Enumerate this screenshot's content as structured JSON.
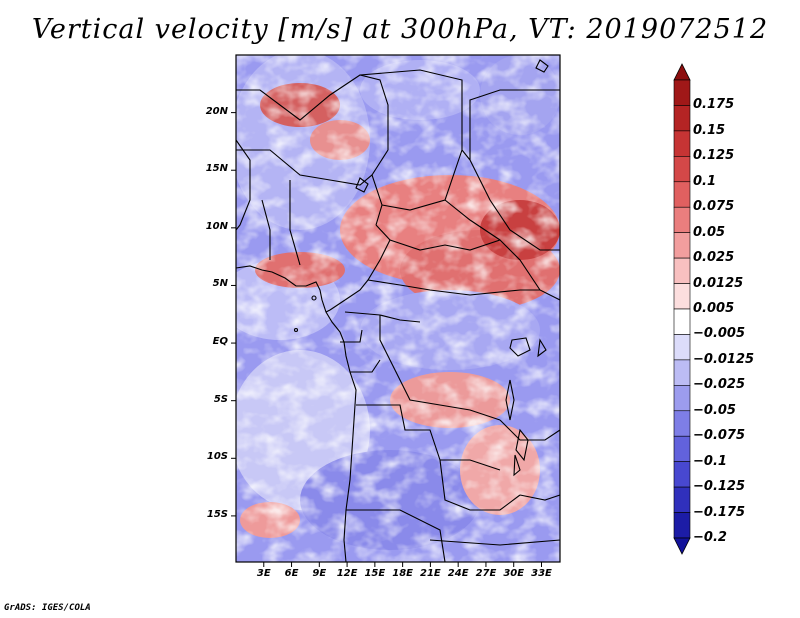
{
  "title": "Vertical velocity [m/s] at 300hPa, VT: 2019072512",
  "credit": "GrADS: IGES/COLA",
  "map": {
    "lon_range": [
      0,
      35
    ],
    "lat_range": [
      -19,
      25
    ],
    "y_ticks": [
      {
        "lat": 20,
        "label": "20N"
      },
      {
        "lat": 15,
        "label": "15N"
      },
      {
        "lat": 10,
        "label": "10N"
      },
      {
        "lat": 5,
        "label": "5N"
      },
      {
        "lat": 0,
        "label": "EQ"
      },
      {
        "lat": -5,
        "label": "5S"
      },
      {
        "lat": -10,
        "label": "10S"
      },
      {
        "lat": -15,
        "label": "15S"
      }
    ],
    "x_ticks": [
      {
        "lon": 3,
        "label": "3E"
      },
      {
        "lon": 6,
        "label": "6E"
      },
      {
        "lon": 9,
        "label": "9E"
      },
      {
        "lon": 12,
        "label": "12E"
      },
      {
        "lon": 15,
        "label": "15E"
      },
      {
        "lon": 18,
        "label": "18E"
      },
      {
        "lon": 21,
        "label": "21E"
      },
      {
        "lon": 24,
        "label": "24E"
      },
      {
        "lon": 27,
        "label": "27E"
      },
      {
        "lon": 30,
        "label": "30E"
      },
      {
        "lon": 33,
        "label": "33E"
      }
    ]
  },
  "colorbar": {
    "levels": [
      {
        "label": "0.175",
        "color": "#a01818"
      },
      {
        "label": "0.15",
        "color": "#b42424"
      },
      {
        "label": "0.125",
        "color": "#c63434"
      },
      {
        "label": "0.1",
        "color": "#d44848"
      },
      {
        "label": "0.075",
        "color": "#e06060"
      },
      {
        "label": "0.05",
        "color": "#ea7e7e"
      },
      {
        "label": "0.025",
        "color": "#f29e9e"
      },
      {
        "label": "0.0125",
        "color": "#f8c0c0"
      },
      {
        "label": "0.005",
        "color": "#fcdede"
      },
      {
        "label": "−0.005",
        "color": "#ffffff"
      },
      {
        "label": "−0.0125",
        "color": "#dcdcfa"
      },
      {
        "label": "−0.025",
        "color": "#bcbcf4"
      },
      {
        "label": "−0.05",
        "color": "#9c9cee"
      },
      {
        "label": "−0.075",
        "color": "#7e7ee6"
      },
      {
        "label": "−0.1",
        "color": "#6262dc"
      },
      {
        "label": "−0.125",
        "color": "#4848d0"
      },
      {
        "label": "−0.175",
        "color": "#3030bc"
      },
      {
        "label": "−0.2",
        "color": "#1c1ca6"
      }
    ],
    "top_arrow_color": "#8c0e0e",
    "bottom_arrow_color": "#12129a"
  }
}
